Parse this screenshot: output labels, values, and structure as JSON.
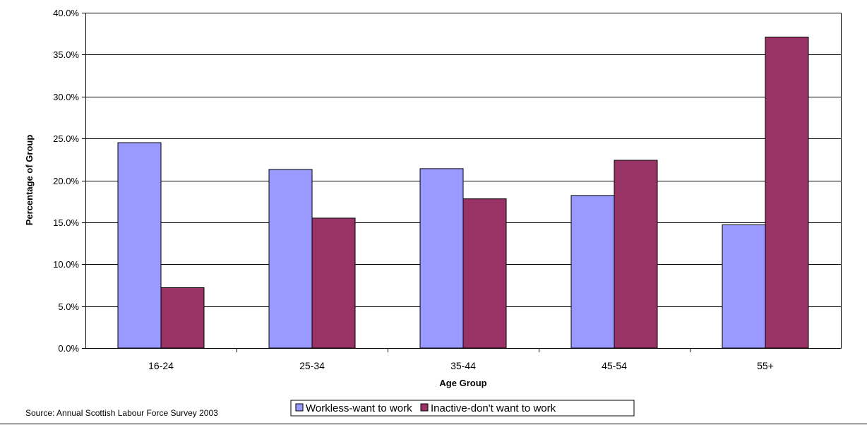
{
  "chart_data": {
    "type": "bar",
    "categories": [
      "16-24",
      "25-34",
      "35-44",
      "45-54",
      "55+"
    ],
    "series": [
      {
        "name": "Workless-want to work",
        "color": "#9999ff",
        "values": [
          24.5,
          21.3,
          21.4,
          18.2,
          14.7
        ]
      },
      {
        "name": "Inactive-don't want to work",
        "color": "#993366",
        "values": [
          7.2,
          15.5,
          17.8,
          22.4,
          37.1
        ]
      }
    ],
    "xlabel": "Age Group",
    "ylabel": "Percentage of Group",
    "ylim": [
      0,
      40
    ],
    "yticks": [
      "0.0%",
      "5.0%",
      "10.0%",
      "15.0%",
      "20.0%",
      "25.0%",
      "30.0%",
      "35.0%",
      "40.0%"
    ],
    "grid": true,
    "legend_position": "bottom"
  },
  "source": "Source: Annual Scottish Labour Force Survey 2003"
}
